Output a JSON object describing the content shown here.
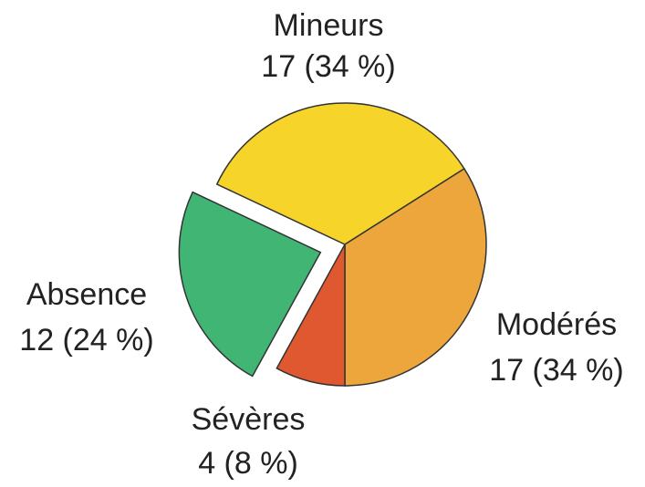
{
  "chart_data": {
    "type": "pie",
    "categories": [
      "Mineurs",
      "Modérés",
      "Sévères",
      "Absence"
    ],
    "values": [
      17,
      17,
      4,
      12
    ],
    "value_labels": [
      "17 (34 %)",
      "17 (34 %)",
      "4 (8 %)",
      "12 (24 %)"
    ],
    "colors": [
      "#f6d42a",
      "#eca63c",
      "#e0582f",
      "#41b574"
    ],
    "explode": [
      false,
      false,
      false,
      true
    ]
  }
}
